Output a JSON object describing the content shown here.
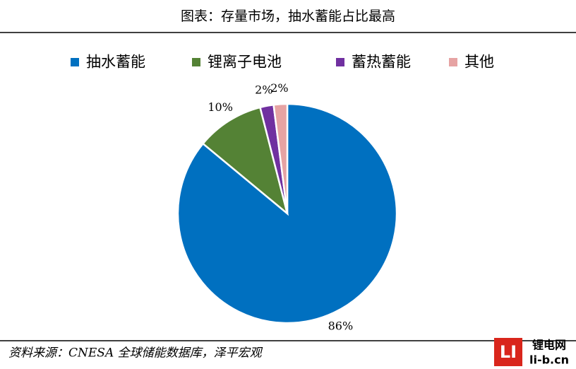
{
  "chart_data": {
    "type": "pie",
    "title": "图表：存量市场，抽水蓄能占比最高",
    "categories": [
      "抽水蓄能",
      "锂离子电池",
      "蓄热蓄能",
      "其他"
    ],
    "values": [
      86,
      10,
      2,
      2
    ],
    "value_labels": [
      "86%",
      "10%",
      "2%",
      "2%"
    ],
    "colors": [
      "#0070c0",
      "#548235",
      "#7030a0",
      "#e6a3a3"
    ],
    "legend": "top",
    "source": "资料来源：CNESA 全球储能数据库，泽平宏观"
  },
  "watermark": [
    "锂电网",
    "li-b.cn"
  ]
}
